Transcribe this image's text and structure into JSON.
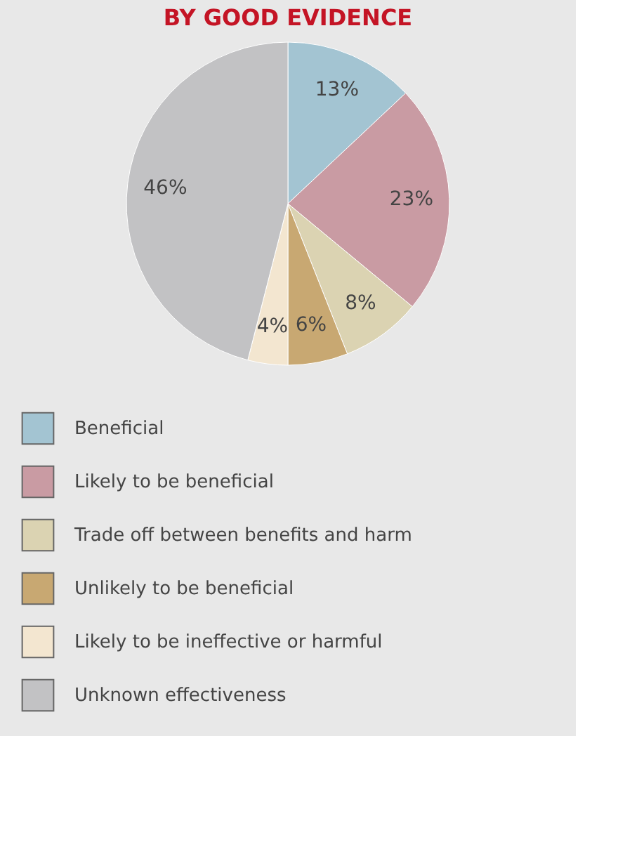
{
  "chart_data": {
    "type": "pie",
    "title": "BY GOOD EVIDENCE",
    "categories": [
      "Beneficial",
      "Likely to be beneficial",
      "Trade off between benefits and harm",
      "Unlikely to be beneficial",
      "Likely to be ineffective or harmful",
      "Unknown effectiveness"
    ],
    "values": [
      13,
      23,
      8,
      6,
      4,
      46
    ],
    "colors": [
      "#a3c4d2",
      "#c99ba3",
      "#dbd3b2",
      "#c8a872",
      "#f3e6d0",
      "#c2c2c4"
    ],
    "value_labels": [
      "13%",
      "23%",
      "8%",
      "6%",
      "4%",
      "46%"
    ],
    "legend": "bottom"
  }
}
